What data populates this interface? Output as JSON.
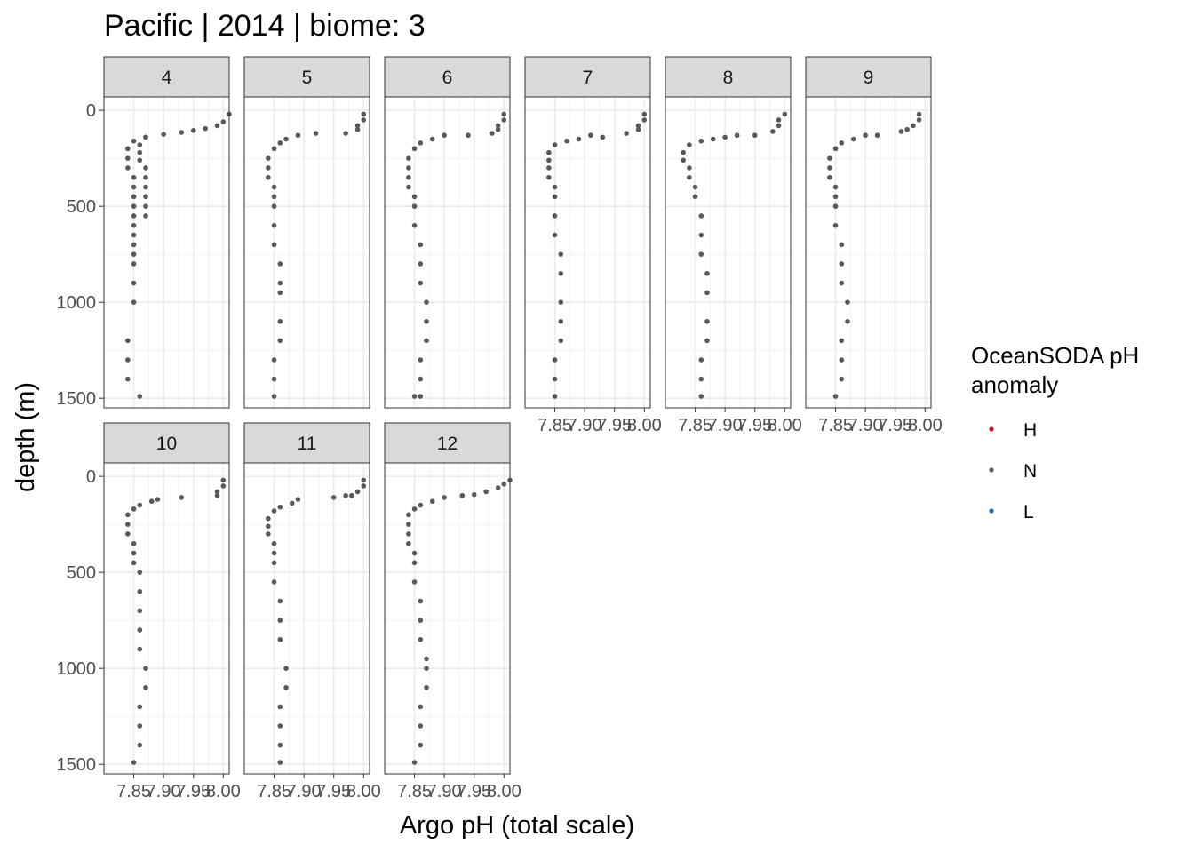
{
  "chart_data": {
    "type": "scatter",
    "title": "Pacific | 2014 | biome: 3",
    "xlabel": "Argo pH (total scale)",
    "ylabel": "depth (m)",
    "facet_variable": "month",
    "facets": [
      "4",
      "5",
      "6",
      "7",
      "8",
      "9",
      "10",
      "11",
      "12"
    ],
    "x_ticks": [
      "7.85",
      "7.90",
      "7.95",
      "8.00"
    ],
    "y_ticks": [
      "0",
      "500",
      "1000",
      "1500"
    ],
    "xlim": [
      7.8,
      8.01
    ],
    "ylim": [
      1550,
      -70
    ],
    "y_reversed": true,
    "grid": true,
    "legend": {
      "title_lines": [
        "OceanSODA pH",
        "anomaly"
      ],
      "position": "right",
      "entries": [
        {
          "label": "H",
          "color": "#b2182b"
        },
        {
          "label": "N",
          "color": "#595959"
        },
        {
          "label": "L",
          "color": "#2166ac"
        }
      ]
    },
    "series": [
      {
        "facet": "4",
        "class": "N",
        "profiles": [
          {
            "x": [
              8.01,
              8.0,
              7.99,
              7.97,
              7.95,
              7.93,
              7.9,
              7.87,
              7.85,
              7.84,
              7.84,
              7.84,
              7.85,
              7.85,
              7.85,
              7.85,
              7.85,
              7.85,
              7.85,
              7.85,
              7.85,
              7.85,
              7.85,
              7.85,
              7.84,
              7.84,
              7.84
            ],
            "y": [
              20,
              60,
              80,
              95,
              105,
              115,
              125,
              140,
              160,
              200,
              250,
              300,
              350,
              400,
              450,
              500,
              550,
              600,
              650,
              700,
              750,
              800,
              900,
              1000,
              1200,
              1300,
              1400
            ]
          },
          {
            "x": [
              7.87,
              7.86,
              7.86,
              7.86,
              7.87,
              7.87,
              7.87,
              7.87,
              7.87,
              7.87,
              7.86
            ],
            "y": [
              140,
              180,
              220,
              260,
              300,
              350,
              400,
              450,
              500,
              550,
              1490
            ]
          }
        ]
      },
      {
        "facet": "5",
        "class": "N",
        "profiles": [
          {
            "x": [
              8.0,
              8.0,
              7.99,
              7.99,
              7.97,
              7.92,
              7.89,
              7.87,
              7.86,
              7.85,
              7.84,
              7.84,
              7.84,
              7.85,
              7.85,
              7.85,
              7.85,
              7.85,
              7.86,
              7.86,
              7.86,
              7.86,
              7.86,
              7.85,
              7.85,
              7.85
            ],
            "y": [
              20,
              50,
              80,
              100,
              120,
              120,
              130,
              150,
              170,
              200,
              250,
              300,
              350,
              400,
              450,
              500,
              600,
              700,
              800,
              900,
              950,
              1100,
              1200,
              1300,
              1400,
              1490
            ]
          }
        ]
      },
      {
        "facet": "6",
        "class": "N",
        "profiles": [
          {
            "x": [
              8.0,
              8.0,
              7.99,
              7.99,
              7.98,
              7.94,
              7.9,
              7.88,
              7.86,
              7.85,
              7.84,
              7.84,
              7.84,
              7.84,
              7.85,
              7.85,
              7.85,
              7.86,
              7.86,
              7.86,
              7.87,
              7.87,
              7.87,
              7.86,
              7.86,
              7.86,
              7.85
            ],
            "y": [
              20,
              50,
              80,
              100,
              120,
              130,
              130,
              150,
              170,
              200,
              250,
              300,
              350,
              400,
              450,
              500,
              600,
              700,
              800,
              900,
              1000,
              1100,
              1200,
              1300,
              1400,
              1490,
              1490
            ]
          }
        ]
      },
      {
        "facet": "7",
        "class": "N",
        "profiles": [
          {
            "x": [
              8.0,
              8.0,
              7.99,
              7.99,
              7.97,
              7.93,
              7.91,
              7.89,
              7.87,
              7.85,
              7.84,
              7.84,
              7.84,
              7.84,
              7.85,
              7.85,
              7.85,
              7.85,
              7.86,
              7.86,
              7.86,
              7.86,
              7.86,
              7.85,
              7.85,
              7.85
            ],
            "y": [
              20,
              50,
              80,
              100,
              120,
              140,
              130,
              150,
              160,
              180,
              220,
              260,
              300,
              350,
              400,
              450,
              550,
              650,
              750,
              850,
              1000,
              1100,
              1200,
              1300,
              1400,
              1490
            ]
          }
        ]
      },
      {
        "facet": "8",
        "class": "N",
        "profiles": [
          {
            "x": [
              8.0,
              7.99,
              7.99,
              7.98,
              7.95,
              7.92,
              7.9,
              7.88,
              7.86,
              7.84,
              7.83,
              7.83,
              7.84,
              7.84,
              7.85,
              7.85,
              7.86,
              7.86,
              7.86,
              7.87,
              7.87,
              7.87,
              7.87,
              7.86,
              7.86,
              7.86
            ],
            "y": [
              20,
              50,
              80,
              110,
              130,
              130,
              140,
              150,
              160,
              180,
              220,
              260,
              300,
              350,
              400,
              450,
              550,
              650,
              750,
              850,
              950,
              1100,
              1200,
              1300,
              1400,
              1490
            ]
          }
        ]
      },
      {
        "facet": "9",
        "class": "N",
        "profiles": [
          {
            "x": [
              7.99,
              7.99,
              7.98,
              7.97,
              7.96,
              7.92,
              7.9,
              7.88,
              7.86,
              7.85,
              7.84,
              7.84,
              7.84,
              7.85,
              7.85,
              7.85,
              7.85,
              7.86,
              7.86,
              7.86,
              7.87,
              7.87,
              7.86,
              7.86,
              7.86,
              7.85
            ],
            "y": [
              20,
              50,
              80,
              100,
              110,
              130,
              130,
              150,
              170,
              200,
              250,
              300,
              350,
              400,
              450,
              500,
              600,
              700,
              800,
              900,
              1000,
              1100,
              1200,
              1300,
              1400,
              1490
            ]
          }
        ]
      },
      {
        "facet": "10",
        "class": "N",
        "profiles": [
          {
            "x": [
              8.0,
              8.0,
              7.99,
              7.99,
              7.93,
              7.89,
              7.88,
              7.86,
              7.85,
              7.84,
              7.84,
              7.84,
              7.85,
              7.85,
              7.85,
              7.86,
              7.86,
              7.86,
              7.86,
              7.86,
              7.87,
              7.87,
              7.86,
              7.86,
              7.86,
              7.85
            ],
            "y": [
              20,
              50,
              80,
              100,
              110,
              120,
              130,
              150,
              170,
              200,
              250,
              300,
              350,
              400,
              450,
              500,
              600,
              700,
              800,
              900,
              1000,
              1100,
              1200,
              1300,
              1400,
              1490
            ]
          }
        ]
      },
      {
        "facet": "11",
        "class": "N",
        "profiles": [
          {
            "x": [
              8.0,
              8.0,
              7.99,
              7.98,
              7.97,
              7.95,
              7.89,
              7.88,
              7.86,
              7.85,
              7.84,
              7.84,
              7.84,
              7.85,
              7.85,
              7.85,
              7.85,
              7.86,
              7.86,
              7.86,
              7.87,
              7.87,
              7.86,
              7.86,
              7.86,
              7.86
            ],
            "y": [
              20,
              50,
              80,
              100,
              100,
              110,
              120,
              140,
              160,
              180,
              220,
              260,
              300,
              350,
              400,
              450,
              550,
              650,
              750,
              850,
              1000,
              1100,
              1200,
              1300,
              1400,
              1490
            ]
          }
        ]
      },
      {
        "facet": "12",
        "class": "N",
        "profiles": [
          {
            "x": [
              8.01,
              8.0,
              7.99,
              7.97,
              7.95,
              7.93,
              7.9,
              7.88,
              7.86,
              7.85,
              7.84,
              7.84,
              7.84,
              7.84,
              7.85,
              7.85,
              7.85,
              7.86,
              7.86,
              7.86,
              7.87,
              7.87,
              7.87,
              7.86,
              7.86,
              7.86,
              7.85
            ],
            "y": [
              20,
              40,
              60,
              80,
              95,
              100,
              110,
              130,
              150,
              170,
              200,
              250,
              300,
              350,
              400,
              450,
              550,
              650,
              750,
              850,
              950,
              1000,
              1100,
              1200,
              1300,
              1400,
              1490
            ]
          }
        ]
      }
    ]
  }
}
